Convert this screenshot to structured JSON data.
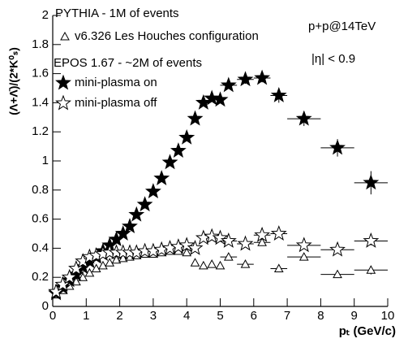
{
  "chart_data": {
    "type": "scatter",
    "y_label": "(Λ+Λ̄)/(2*K⁰ₛ)",
    "x_label": "pₜ (GeV/c)",
    "annotations": [
      "PYTHIA  - 1M of events",
      "EPOS 1.67  - ~2M of events",
      "p+p@14TeV",
      "|η| < 0.9"
    ],
    "xlim": [
      0,
      10
    ],
    "xticks": [
      0,
      1,
      2,
      3,
      4,
      5,
      6,
      7,
      8,
      9,
      10
    ],
    "ylim": [
      0,
      2
    ],
    "yticks": [
      0,
      0.2,
      0.4,
      0.6,
      0.8,
      1,
      1.2,
      1.4,
      1.6,
      1.8,
      2
    ],
    "series": [
      {
        "name": "v6.326 Les Houches configuration",
        "marker": "open-triangle",
        "color": "#000000",
        "x": [
          0.1,
          0.3,
          0.5,
          0.7,
          0.9,
          1.1,
          1.3,
          1.5,
          1.7,
          1.9,
          2.1,
          2.3,
          2.5,
          2.75,
          3.0,
          3.25,
          3.5,
          3.75,
          4.0,
          4.25,
          4.5,
          4.75,
          5.0,
          5.25,
          5.75,
          6.25,
          6.75,
          7.5,
          8.5,
          9.5
        ],
        "values": [
          0.08,
          0.11,
          0.14,
          0.17,
          0.2,
          0.23,
          0.26,
          0.28,
          0.3,
          0.32,
          0.33,
          0.34,
          0.35,
          0.36,
          0.36,
          0.37,
          0.38,
          0.38,
          0.37,
          0.3,
          0.28,
          0.29,
          0.28,
          0.34,
          0.29,
          0.44,
          0.26,
          0.34,
          0.22,
          0.25
        ],
        "xerr": [
          0,
          0,
          0,
          0,
          0,
          0,
          0,
          0,
          0,
          0,
          0,
          0,
          0,
          0,
          0,
          0,
          0,
          0,
          0,
          0,
          0,
          0,
          0,
          0.25,
          0.25,
          0.25,
          0.25,
          0.5,
          0.5,
          0.5
        ],
        "yerr": [
          0,
          0,
          0,
          0,
          0,
          0,
          0,
          0,
          0,
          0,
          0,
          0,
          0,
          0,
          0,
          0,
          0,
          0,
          0,
          0,
          0,
          0,
          0,
          0,
          0,
          0,
          0,
          0.02,
          0.02,
          0.03
        ]
      },
      {
        "name": "mini-plasma on",
        "marker": "filled-star",
        "color": "#000000",
        "x": [
          0.1,
          0.3,
          0.5,
          0.7,
          0.9,
          1.1,
          1.3,
          1.5,
          1.7,
          1.9,
          2.1,
          2.3,
          2.5,
          2.75,
          3.0,
          3.25,
          3.5,
          3.75,
          4.0,
          4.25,
          4.5,
          4.75,
          5.0,
          5.25,
          5.75,
          6.25,
          6.75,
          7.5,
          8.5,
          9.5
        ],
        "values": [
          0.09,
          0.13,
          0.18,
          0.22,
          0.27,
          0.31,
          0.34,
          0.38,
          0.42,
          0.46,
          0.5,
          0.55,
          0.63,
          0.7,
          0.79,
          0.88,
          0.99,
          1.07,
          1.16,
          1.29,
          1.4,
          1.43,
          1.42,
          1.52,
          1.56,
          1.57,
          1.45,
          1.29,
          1.09,
          0.85
        ],
        "xerr": [
          0,
          0,
          0,
          0,
          0,
          0,
          0,
          0,
          0,
          0,
          0,
          0,
          0,
          0,
          0,
          0,
          0,
          0,
          0,
          0,
          0,
          0,
          0,
          0.25,
          0.25,
          0.25,
          0.25,
          0.5,
          0.5,
          0.5
        ],
        "yerr": [
          0,
          0,
          0,
          0,
          0,
          0,
          0,
          0,
          0,
          0,
          0,
          0,
          0,
          0,
          0,
          0,
          0,
          0,
          0,
          0,
          0,
          0,
          0,
          0.02,
          0.03,
          0.03,
          0.05,
          0.05,
          0.06,
          0.08
        ]
      },
      {
        "name": "mini-plasma off",
        "marker": "open-star",
        "color": "#000000",
        "x": [
          0.1,
          0.3,
          0.5,
          0.7,
          0.9,
          1.1,
          1.3,
          1.5,
          1.7,
          1.9,
          2.1,
          2.3,
          2.5,
          2.75,
          3.0,
          3.25,
          3.5,
          3.75,
          4.0,
          4.25,
          4.5,
          4.75,
          5.0,
          5.25,
          5.75,
          6.25,
          6.75,
          7.5,
          8.5,
          9.5
        ],
        "values": [
          0.1,
          0.15,
          0.2,
          0.26,
          0.31,
          0.34,
          0.35,
          0.36,
          0.37,
          0.37,
          0.37,
          0.37,
          0.37,
          0.38,
          0.38,
          0.39,
          0.4,
          0.41,
          0.42,
          0.4,
          0.47,
          0.48,
          0.47,
          0.45,
          0.43,
          0.49,
          0.5,
          0.42,
          0.39,
          0.45
        ],
        "xerr": [
          0,
          0,
          0,
          0,
          0,
          0,
          0,
          0,
          0,
          0,
          0,
          0,
          0,
          0,
          0,
          0,
          0,
          0,
          0,
          0,
          0.125,
          0.125,
          0.125,
          0.25,
          0.25,
          0.25,
          0.25,
          0.5,
          0.5,
          0.5
        ],
        "yerr": [
          0,
          0,
          0,
          0,
          0,
          0,
          0,
          0,
          0,
          0,
          0,
          0,
          0,
          0,
          0,
          0,
          0,
          0,
          0,
          0,
          0,
          0,
          0,
          0,
          0,
          0,
          0,
          0.02,
          0.02,
          0.03
        ]
      }
    ]
  }
}
